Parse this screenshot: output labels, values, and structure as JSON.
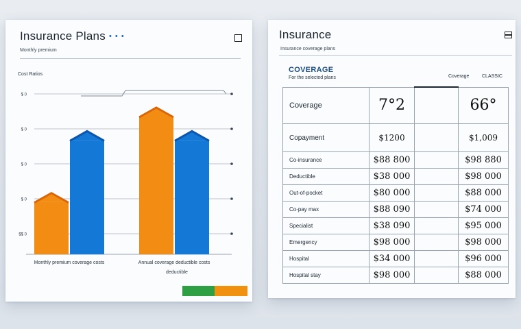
{
  "left_card": {
    "title": "Insurance Plans",
    "title_dots": "• • •",
    "close_icon": "close-box-icon",
    "subtitle": "Monthly premium",
    "chart_heading": "Cost Ratios",
    "legend_colors": [
      "#2ea043",
      "#f0920f"
    ]
  },
  "chart_data": {
    "type": "bar",
    "title": "",
    "xlabel": "",
    "ylabel": "",
    "ytick_labels": [
      "$$ 0",
      "$ 0",
      "$ 0",
      "$ 0",
      "$ 0"
    ],
    "grid": true,
    "categories": [
      "Monthly premium coverage costs",
      "Annual coverage deductible costs"
    ],
    "category_sublabel": "deductible",
    "series": [
      {
        "name": "",
        "color": "#f28c12",
        "values": [
          2.1,
          5.0
        ]
      },
      {
        "name": "",
        "color": "#1479d6",
        "values": [
          4.2,
          4.2
        ]
      }
    ],
    "ylim": [
      0,
      6
    ]
  },
  "right_card": {
    "title": "Insurance",
    "menu_icon": "menu-box-icon",
    "subtitle": "Insurance coverage plans",
    "table_heading": "COVERAGE",
    "table_subheading": "For the selected plans",
    "col_headers": [
      "Coverage",
      "CLASSIC"
    ],
    "top_row": {
      "label": "Coverage",
      "a": "7°2",
      "b": "66°"
    },
    "sub_row": {
      "label": "Copayment",
      "a": "$1200",
      "b": "$1,009"
    },
    "rows": [
      {
        "label": "Co-insurance",
        "a": "$88 800",
        "b": "$98 880"
      },
      {
        "label": "Deductible",
        "a": "$38 000",
        "b": "$98 000"
      },
      {
        "label": "Out-of-pocket",
        "a": "$80 000",
        "b": "$88 000"
      },
      {
        "label": "Co-pay max",
        "a": "$88 090",
        "b": "$74 000"
      },
      {
        "label": "Specialist",
        "a": "$38 090",
        "b": "$95 000"
      },
      {
        "label": "Emergency",
        "a": "$98 000",
        "b": "$98 000"
      },
      {
        "label": "Hospital",
        "a": "$34 000",
        "b": "$96 000"
      },
      {
        "label": "Hospital stay",
        "a": "$98 000",
        "b": "$88 000"
      }
    ]
  }
}
